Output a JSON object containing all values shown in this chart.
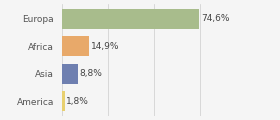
{
  "categories": [
    "Europa",
    "Africa",
    "Asia",
    "America"
  ],
  "values": [
    74.6,
    14.9,
    8.8,
    1.8
  ],
  "bar_colors": [
    "#a8bc8c",
    "#e8a96a",
    "#6e7fb0",
    "#e8d070"
  ],
  "labels": [
    "74,6%",
    "14,9%",
    "8,8%",
    "1,8%"
  ],
  "xlim": [
    0,
    100
  ],
  "background_color": "#f5f5f5",
  "label_fontsize": 6.5,
  "tick_fontsize": 6.5,
  "bar_height": 0.72
}
